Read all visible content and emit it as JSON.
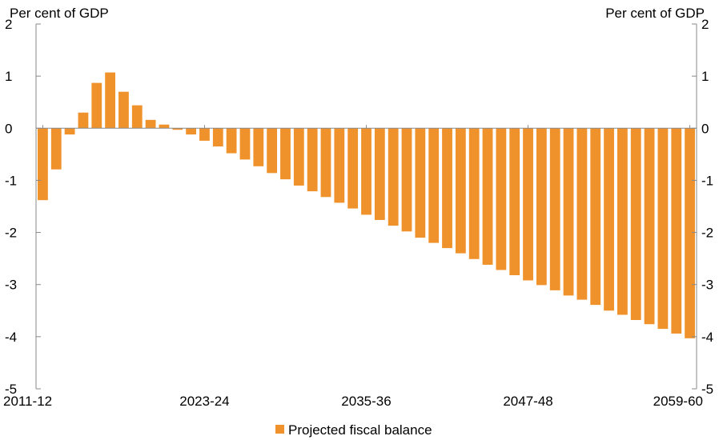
{
  "chart_data": {
    "type": "bar",
    "title": "",
    "left_axis_unit": "Per cent of GDP",
    "right_axis_unit": "Per cent of GDP",
    "ylim": [
      -5,
      2
    ],
    "yticks": [
      2,
      1,
      0,
      -1,
      -2,
      -3,
      -4,
      -5
    ],
    "grid": false,
    "legend_position": "bottom-center",
    "x_tick_labels": [
      "2011-12",
      "2023-24",
      "2035-36",
      "2047-48",
      "2059-60"
    ],
    "categories": [
      "2011-12",
      "2012-13",
      "2013-14",
      "2014-15",
      "2015-16",
      "2016-17",
      "2017-18",
      "2018-19",
      "2019-20",
      "2020-21",
      "2021-22",
      "2022-23",
      "2023-24",
      "2024-25",
      "2025-26",
      "2026-27",
      "2027-28",
      "2028-29",
      "2029-30",
      "2030-31",
      "2031-32",
      "2032-33",
      "2033-34",
      "2034-35",
      "2035-36",
      "2036-37",
      "2037-38",
      "2038-39",
      "2039-40",
      "2040-41",
      "2041-42",
      "2042-43",
      "2043-44",
      "2044-45",
      "2045-46",
      "2046-47",
      "2047-48",
      "2048-49",
      "2049-50",
      "2050-51",
      "2051-52",
      "2052-53",
      "2053-54",
      "2054-55",
      "2055-56",
      "2056-57",
      "2057-58",
      "2058-59",
      "2059-60"
    ],
    "series": [
      {
        "name": "Projected fiscal balance",
        "color": "#F0922B",
        "values": [
          -1.38,
          -0.79,
          -0.12,
          0.3,
          0.87,
          1.07,
          0.7,
          0.44,
          0.16,
          0.07,
          -0.03,
          -0.12,
          -0.24,
          -0.35,
          -0.48,
          -0.6,
          -0.73,
          -0.86,
          -0.98,
          -1.1,
          -1.21,
          -1.32,
          -1.43,
          -1.54,
          -1.66,
          -1.76,
          -1.87,
          -1.98,
          -2.1,
          -2.2,
          -2.3,
          -2.4,
          -2.51,
          -2.62,
          -2.72,
          -2.82,
          -2.92,
          -3.01,
          -3.11,
          -3.21,
          -3.29,
          -3.39,
          -3.5,
          -3.58,
          -3.68,
          -3.76,
          -3.85,
          -3.94,
          -4.03
        ]
      }
    ]
  }
}
